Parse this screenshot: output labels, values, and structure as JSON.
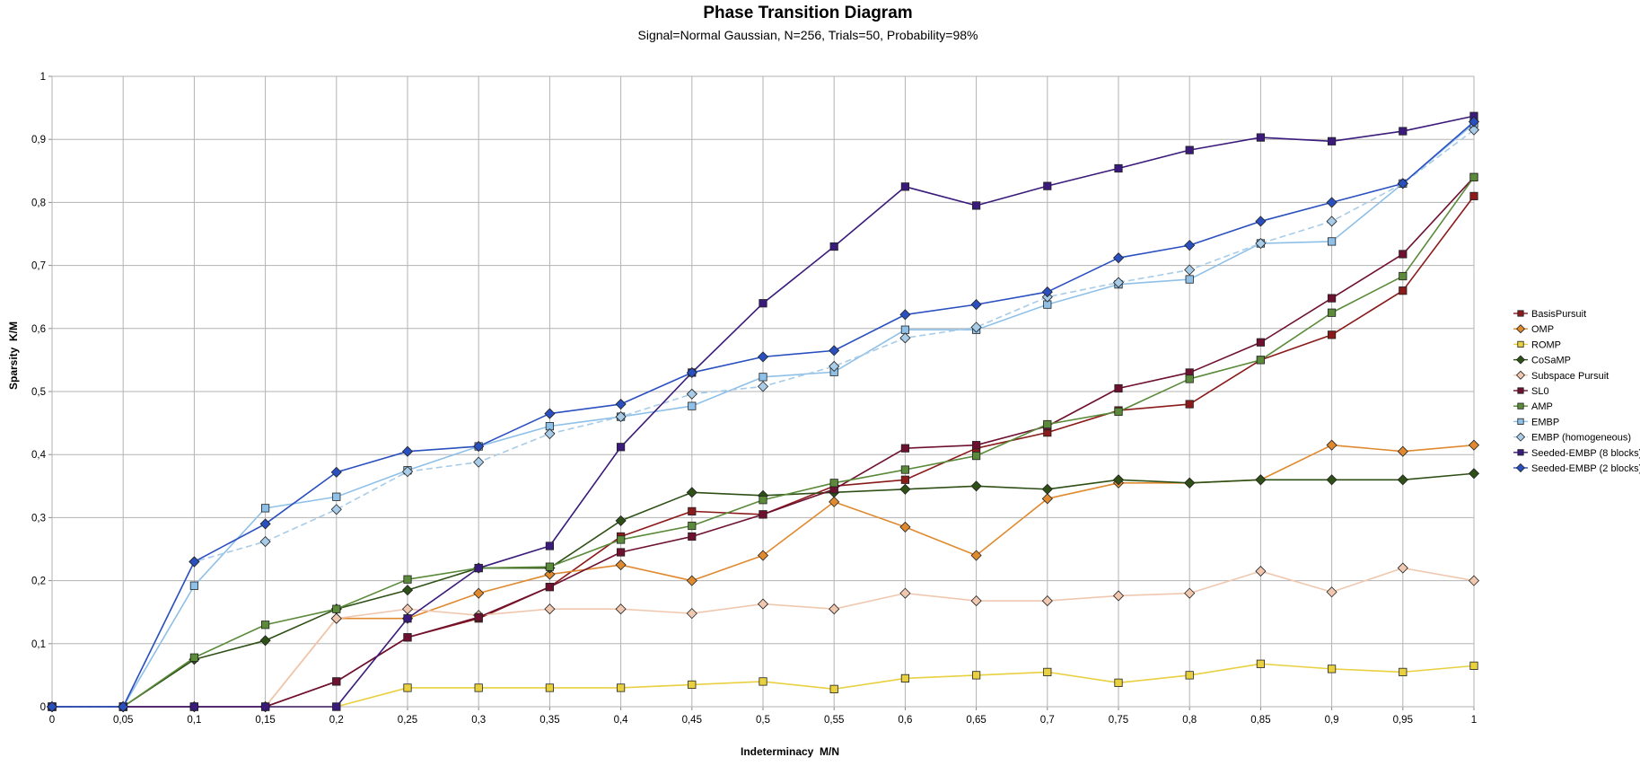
{
  "chart_data": {
    "type": "line",
    "title": "Phase Transition Diagram",
    "subtitle": "Signal=Normal Gaussian, N=256, Trials=50, Probability=98%",
    "xlabel": "Indeterminacy  M/N",
    "ylabel": "Sparsity  K/M",
    "xlim": [
      0,
      1
    ],
    "ylim": [
      0,
      1
    ],
    "grid": true,
    "legend_position": "right",
    "x": [
      0,
      0.05,
      0.1,
      0.15,
      0.2,
      0.25,
      0.3,
      0.35,
      0.4,
      0.45,
      0.5,
      0.55,
      0.6,
      0.65,
      0.7,
      0.75,
      0.8,
      0.85,
      0.9,
      0.95,
      1
    ],
    "x_tick_labels": [
      "0",
      "0,05",
      "0,1",
      "0,15",
      "0,2",
      "0,25",
      "0,3",
      "0,35",
      "0,4",
      "0,45",
      "0,5",
      "0,55",
      "0,6",
      "0,65",
      "0,7",
      "0,75",
      "0,8",
      "0,85",
      "0,9",
      "0,95",
      "1"
    ],
    "y_ticks": [
      0,
      0.1,
      0.2,
      0.3,
      0.4,
      0.5,
      0.6,
      0.7,
      0.8,
      0.9,
      1
    ],
    "y_tick_labels": [
      "0",
      "0,1",
      "0,2",
      "0,3",
      "0,4",
      "0,5",
      "0,6",
      "0,7",
      "0,8",
      "0,9",
      "1"
    ],
    "series": [
      {
        "name": "BasisPursuit",
        "color": "#8b1a1a",
        "marker": "square",
        "values": [
          0,
          0,
          0,
          0,
          0.04,
          0.11,
          0.14,
          0.19,
          0.27,
          0.31,
          0.305,
          0.35,
          0.36,
          0.41,
          0.435,
          0.47,
          0.48,
          0.55,
          0.59,
          0.66,
          0.81
        ]
      },
      {
        "name": "OMP",
        "color": "#e08a30",
        "marker": "diamond",
        "values": [
          0,
          0,
          0,
          0,
          0.14,
          0.14,
          0.18,
          0.21,
          0.225,
          0.2,
          0.24,
          0.325,
          0.285,
          0.24,
          0.33,
          0.355,
          0.355,
          0.36,
          0.415,
          0.405,
          0.415
        ]
      },
      {
        "name": "ROMP",
        "color": "#e8d040",
        "marker": "square",
        "values": [
          0,
          0,
          0,
          0,
          0,
          0.03,
          0.03,
          0.03,
          0.03,
          0.035,
          0.04,
          0.028,
          0.045,
          0.05,
          0.055,
          0.038,
          0.05,
          0.068,
          0.06,
          0.055,
          0.065
        ]
      },
      {
        "name": "CoSaMP",
        "color": "#2e5016",
        "marker": "diamond",
        "values": [
          0,
          0,
          0.075,
          0.105,
          0.155,
          0.185,
          0.22,
          0.22,
          0.295,
          0.34,
          0.335,
          0.34,
          0.345,
          0.35,
          0.345,
          0.36,
          0.355,
          0.36,
          0.36,
          0.36,
          0.37
        ]
      },
      {
        "name": "Subspace Pursuit",
        "color": "#f0c8b0",
        "marker": "diamond",
        "values": [
          0,
          0,
          0,
          0,
          0.14,
          0.155,
          0.145,
          0.155,
          0.155,
          0.148,
          0.163,
          0.155,
          0.18,
          0.168,
          0.168,
          0.176,
          0.18,
          0.215,
          0.182,
          0.22,
          0.2
        ]
      },
      {
        "name": "SL0",
        "color": "#6e1030",
        "marker": "square",
        "values": [
          0,
          0,
          0,
          0,
          0.04,
          0.11,
          0.142,
          0.19,
          0.245,
          0.27,
          0.305,
          0.345,
          0.41,
          0.415,
          0.445,
          0.505,
          0.53,
          0.578,
          0.648,
          0.718,
          0.84
        ]
      },
      {
        "name": "AMP",
        "color": "#5a8a3a",
        "marker": "square",
        "values": [
          0,
          0,
          0.078,
          0.13,
          0.155,
          0.202,
          0.22,
          0.222,
          0.265,
          0.287,
          0.328,
          0.355,
          0.376,
          0.398,
          0.448,
          0.468,
          0.52,
          0.55,
          0.625,
          0.683,
          0.84
        ]
      },
      {
        "name": "EMBP",
        "color": "#8fc0e8",
        "marker": "square",
        "values": [
          0,
          0,
          0.192,
          0.315,
          0.333,
          0.375,
          0.413,
          0.445,
          0.46,
          0.477,
          0.523,
          0.531,
          0.598,
          0.598,
          0.638,
          0.67,
          0.678,
          0.735,
          0.738,
          0.83,
          0.925
        ]
      },
      {
        "name": "EMBP (homogeneous)",
        "color": "#a8cce8",
        "marker": "diamond",
        "dash": "7,4",
        "values": [
          0,
          0,
          0.23,
          0.262,
          0.313,
          0.373,
          0.388,
          0.433,
          0.46,
          0.496,
          0.508,
          0.54,
          0.585,
          0.602,
          0.65,
          0.673,
          0.693,
          0.735,
          0.77,
          0.83,
          0.915
        ]
      },
      {
        "name": "Seeded-EMBP (8 blocks)",
        "color": "#3a1a7a",
        "marker": "square",
        "values": [
          0,
          0,
          0,
          0,
          0,
          0.14,
          0.22,
          0.255,
          0.412,
          0.53,
          0.64,
          0.73,
          0.825,
          0.795,
          0.826,
          0.854,
          0.883,
          0.903,
          0.897,
          0.913,
          0.937
        ]
      },
      {
        "name": "Seeded-EMBP (2 blocks)",
        "color": "#2a4fbf",
        "marker": "diamond",
        "values": [
          0,
          0,
          0.23,
          0.29,
          0.372,
          0.405,
          0.413,
          0.465,
          0.48,
          0.53,
          0.555,
          0.565,
          0.622,
          0.638,
          0.658,
          0.712,
          0.732,
          0.77,
          0.8,
          0.83,
          0.928
        ]
      }
    ]
  }
}
